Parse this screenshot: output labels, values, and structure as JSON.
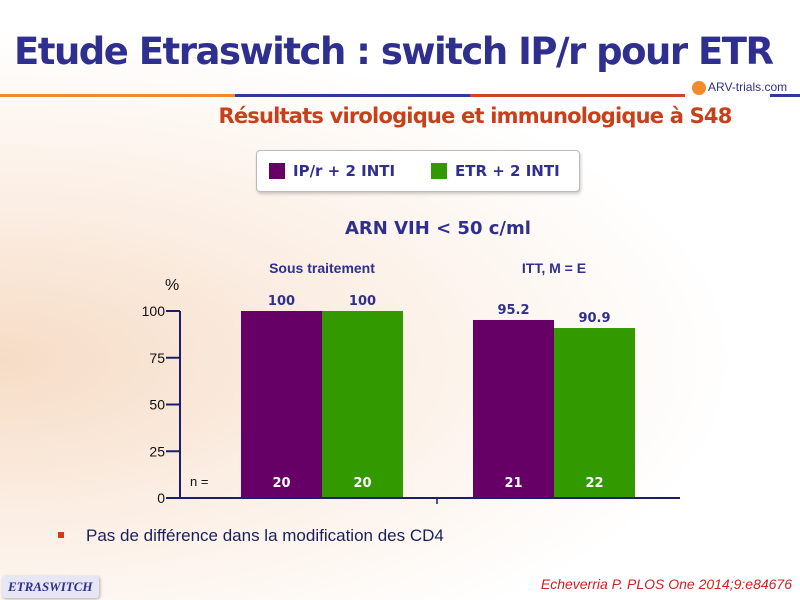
{
  "header": {
    "title": "Etude Etraswitch : switch IP/r pour ETR",
    "logo_text": "ARV-trials.com",
    "subtitle": "Résultats virologique et immunologique  à S48"
  },
  "colors": {
    "title": "#2e2f8f",
    "subtitle": "#c8401a",
    "series1": "#660066",
    "series2": "#339900"
  },
  "chart_data": {
    "type": "bar",
    "title": "ARN VIH < 50 c/ml",
    "ylabel": "%",
    "ylim": [
      0,
      100
    ],
    "yticks": [
      0,
      25,
      50,
      75,
      100
    ],
    "categories": [
      "Sous traitement",
      "ITT, M = E"
    ],
    "n_label": "n =",
    "legend_position": "top",
    "series": [
      {
        "name": "IP/r + 2 INTI",
        "color": "#660066",
        "values": [
          100,
          95.2
        ],
        "value_labels": [
          "100",
          "95.2"
        ],
        "n": [
          "20",
          "21"
        ]
      },
      {
        "name": "ETR + 2 INTI",
        "color": "#339900",
        "values": [
          100,
          90.9
        ],
        "value_labels": [
          "100",
          "90.9"
        ],
        "n": [
          "20",
          "22"
        ]
      }
    ]
  },
  "bullet": "Pas de différence dans la modification des CD4",
  "footer": {
    "badge": "ETRASWITCH",
    "reference": "Echeverria P. PLOS One 2014;9:e84676"
  }
}
